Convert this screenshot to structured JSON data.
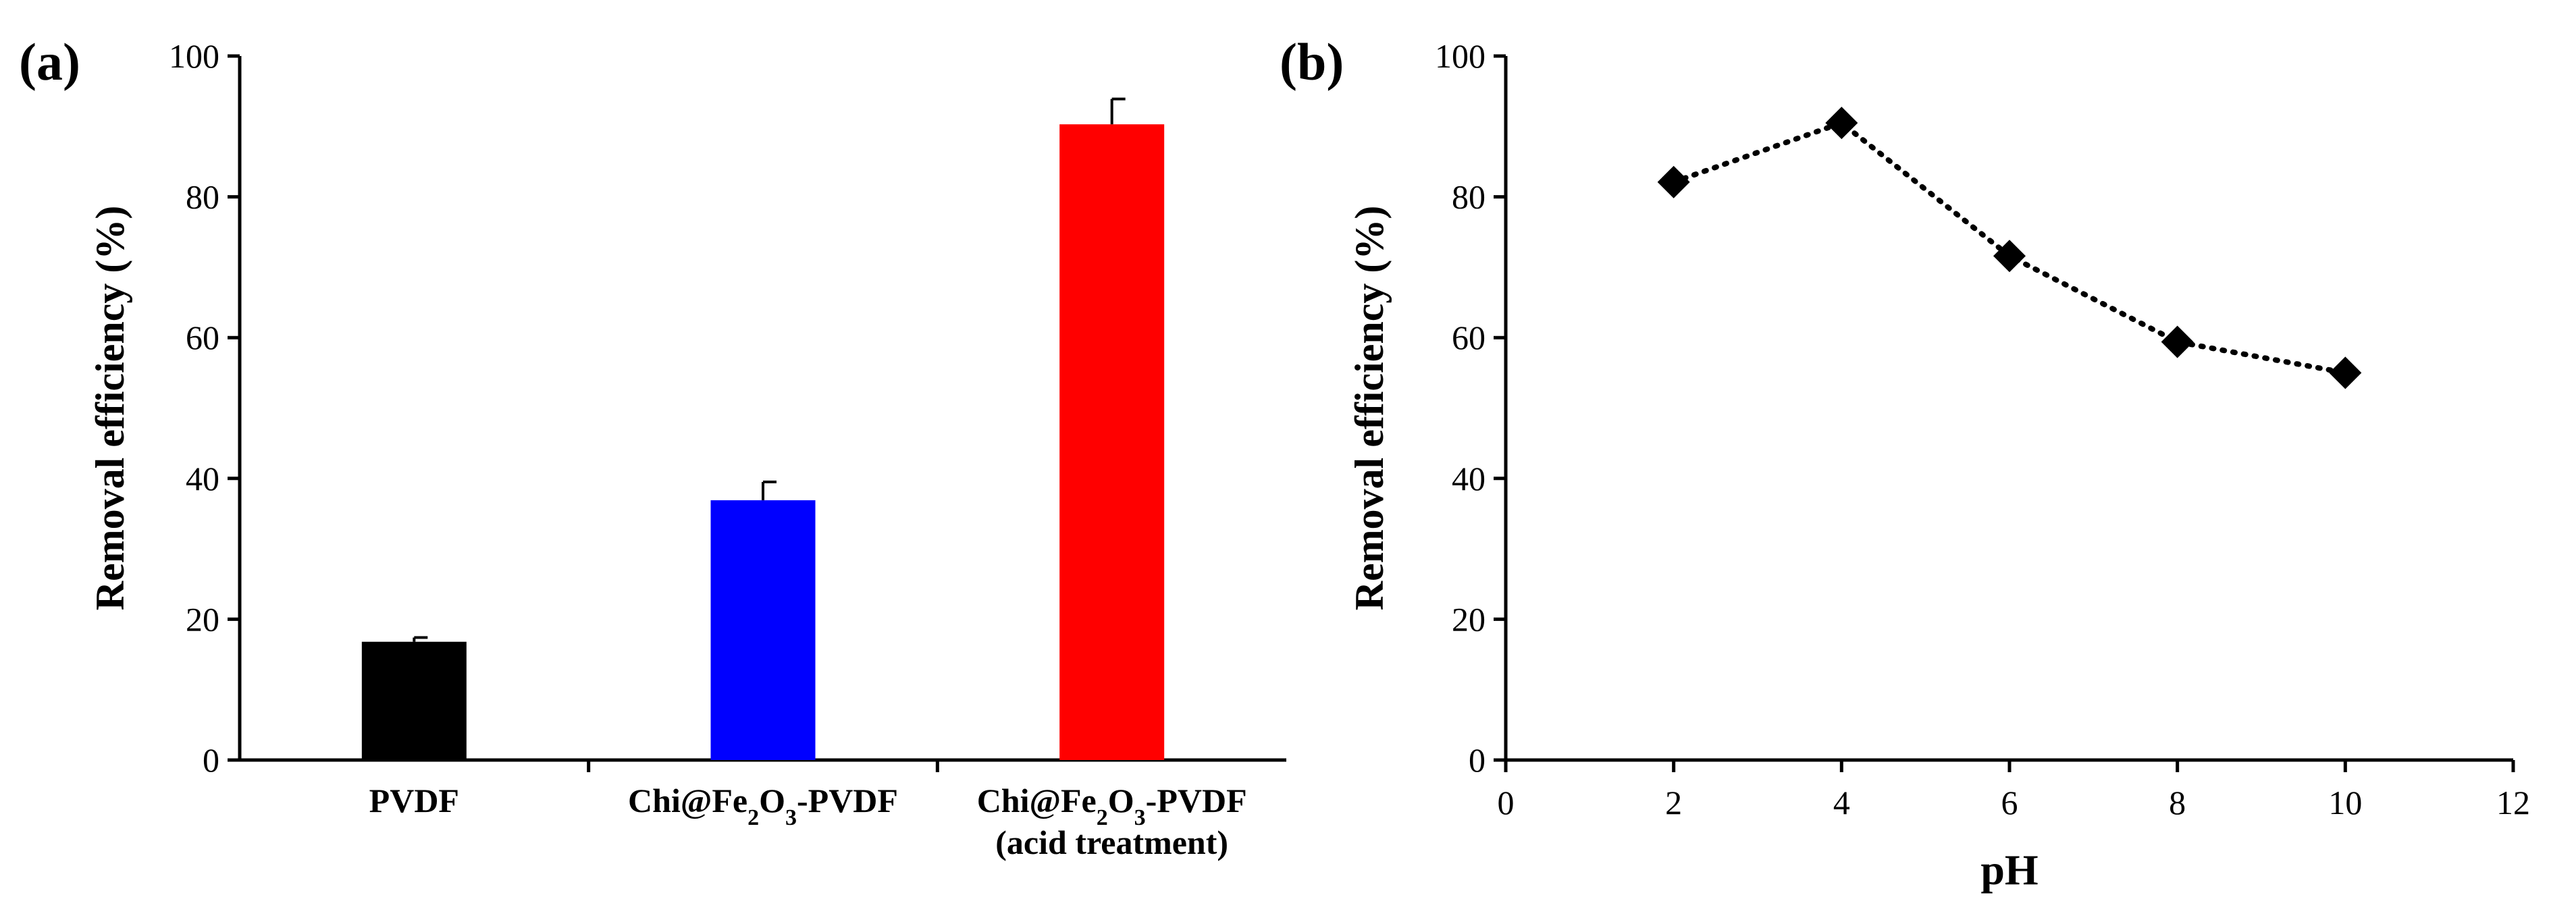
{
  "chart_data": [
    {
      "panel": "(a)",
      "type": "bar",
      "title": "",
      "xlabel": "",
      "ylabel": "Removal efficiency (%)",
      "ylim": [
        0,
        100
      ],
      "yticks": [
        0,
        20,
        40,
        60,
        80,
        100
      ],
      "categories": [
        {
          "lines": [
            [
              {
                "t": "PVDF"
              }
            ]
          ]
        },
        {
          "lines": [
            [
              {
                "t": "Chi@Fe"
              },
              {
                "t": "2",
                "sub": true
              },
              {
                "t": "O"
              },
              {
                "t": "3",
                "sub": true
              },
              {
                "t": "-PVDF"
              }
            ]
          ]
        },
        {
          "lines": [
            [
              {
                "t": "Chi@Fe"
              },
              {
                "t": "2",
                "sub": true
              },
              {
                "t": "O"
              },
              {
                "t": "3",
                "sub": true
              },
              {
                "t": "-PVDF"
              }
            ],
            [
              {
                "t": "(acid treatment)"
              }
            ]
          ]
        }
      ],
      "category_names": [
        "PVDF",
        "Chi@Fe2O3-PVDF",
        "Chi@Fe2O3-PVDF (acid treatment)"
      ],
      "values": [
        16.8,
        36.9,
        90.3
      ],
      "errors": [
        0.6,
        2.6,
        3.6
      ],
      "colors": [
        "#000000",
        "#0000ff",
        "#ff0000"
      ],
      "grid": false,
      "legend": "none"
    },
    {
      "panel": "(b)",
      "type": "line",
      "title": "",
      "xlabel": "pH",
      "ylabel": "Removal efficiency (%)",
      "xlim": [
        0,
        12
      ],
      "ylim": [
        0,
        100
      ],
      "xticks": [
        0,
        2,
        4,
        6,
        8,
        10,
        12
      ],
      "yticks": [
        0,
        20,
        40,
        60,
        80,
        100
      ],
      "series": [
        {
          "name": "Removal efficiency",
          "x": [
            2,
            4,
            6,
            8,
            10
          ],
          "y": [
            82.1,
            90.5,
            71.6,
            59.4,
            55.0
          ],
          "marker": "diamond",
          "line": "dotted",
          "color": "#000000"
        }
      ],
      "grid": false,
      "legend": "none"
    }
  ]
}
